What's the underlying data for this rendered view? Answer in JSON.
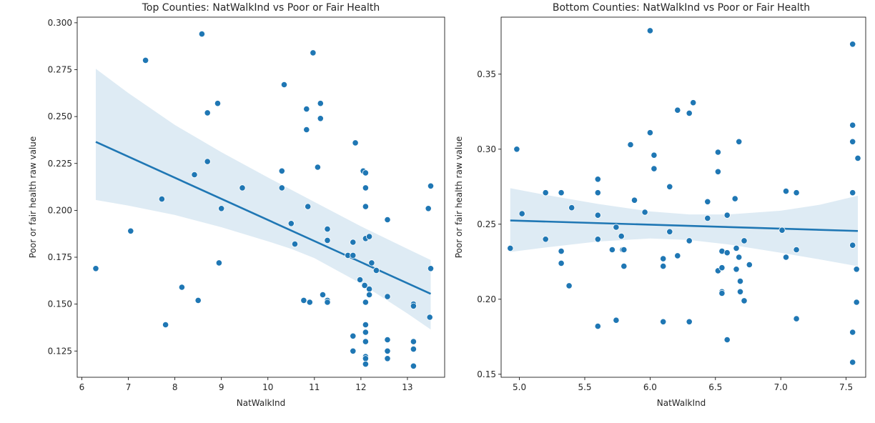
{
  "chart_data": [
    {
      "type": "scatter",
      "title": "Top Counties: NatWalkInd vs Poor or Fair Health",
      "xlabel": "NatWalkInd",
      "ylabel": "Poor or fair health raw value",
      "xlim": [
        5.9,
        13.8
      ],
      "ylim": [
        0.111,
        0.303
      ],
      "xticks": [
        6,
        7,
        8,
        9,
        10,
        11,
        12,
        13
      ],
      "yticks": [
        0.125,
        0.15,
        0.175,
        0.2,
        0.225,
        0.25,
        0.275,
        0.3
      ],
      "ytick_labels": [
        "0.125",
        "0.150",
        "0.175",
        "0.200",
        "0.225",
        "0.250",
        "0.275",
        "0.300"
      ],
      "grid": false,
      "point_color": "#1f77b4",
      "regression": {
        "x_start": 6.3,
        "y_start": 0.2365,
        "x_end": 13.5,
        "y_end": 0.1555,
        "ci_upper": [
          [
            6.3,
            0.2755
          ],
          [
            7.0,
            0.2625
          ],
          [
            8.0,
            0.2455
          ],
          [
            9.0,
            0.231
          ],
          [
            10.0,
            0.2175
          ],
          [
            10.5,
            0.211
          ],
          [
            11.0,
            0.2045
          ],
          [
            12.0,
            0.1915
          ],
          [
            13.0,
            0.1795
          ],
          [
            13.5,
            0.1735
          ]
        ],
        "ci_lower": [
          [
            6.3,
            0.2055
          ],
          [
            7.0,
            0.2025
          ],
          [
            8.0,
            0.1975
          ],
          [
            9.0,
            0.191
          ],
          [
            10.0,
            0.1835
          ],
          [
            10.5,
            0.1795
          ],
          [
            11.0,
            0.1745
          ],
          [
            12.0,
            0.161
          ],
          [
            13.0,
            0.145
          ],
          [
            13.5,
            0.1365
          ]
        ]
      },
      "points": [
        [
          6.3,
          0.169
        ],
        [
          7.05,
          0.189
        ],
        [
          7.37,
          0.28
        ],
        [
          7.72,
          0.206
        ],
        [
          7.8,
          0.139
        ],
        [
          8.15,
          0.159
        ],
        [
          8.42,
          0.219
        ],
        [
          8.5,
          0.152
        ],
        [
          8.58,
          0.294
        ],
        [
          8.7,
          0.252
        ],
        [
          8.7,
          0.226
        ],
        [
          8.92,
          0.257
        ],
        [
          8.95,
          0.172
        ],
        [
          9.0,
          0.201
        ],
        [
          9.45,
          0.212
        ],
        [
          10.3,
          0.221
        ],
        [
          10.3,
          0.212
        ],
        [
          10.35,
          0.267
        ],
        [
          10.5,
          0.193
        ],
        [
          10.58,
          0.182
        ],
        [
          10.77,
          0.152
        ],
        [
          10.83,
          0.254
        ],
        [
          10.83,
          0.243
        ],
        [
          10.86,
          0.202
        ],
        [
          10.9,
          0.151
        ],
        [
          10.97,
          0.284
        ],
        [
          11.07,
          0.223
        ],
        [
          11.13,
          0.257
        ],
        [
          11.13,
          0.249
        ],
        [
          11.18,
          0.155
        ],
        [
          11.28,
          0.19
        ],
        [
          11.28,
          0.184
        ],
        [
          11.28,
          0.152
        ],
        [
          11.28,
          0.151
        ],
        [
          11.72,
          0.176
        ],
        [
          11.83,
          0.183
        ],
        [
          11.83,
          0.176
        ],
        [
          11.83,
          0.133
        ],
        [
          11.83,
          0.125
        ],
        [
          11.88,
          0.236
        ],
        [
          11.98,
          0.163
        ],
        [
          12.05,
          0.221
        ],
        [
          12.08,
          0.16
        ],
        [
          12.1,
          0.22
        ],
        [
          12.1,
          0.212
        ],
        [
          12.1,
          0.202
        ],
        [
          12.1,
          0.185
        ],
        [
          12.1,
          0.151
        ],
        [
          12.1,
          0.139
        ],
        [
          12.1,
          0.135
        ],
        [
          12.1,
          0.13
        ],
        [
          12.1,
          0.122
        ],
        [
          12.1,
          0.121
        ],
        [
          12.1,
          0.118
        ],
        [
          12.18,
          0.186
        ],
        [
          12.18,
          0.158
        ],
        [
          12.18,
          0.155
        ],
        [
          12.23,
          0.172
        ],
        [
          12.33,
          0.168
        ],
        [
          12.57,
          0.195
        ],
        [
          12.57,
          0.154
        ],
        [
          12.57,
          0.131
        ],
        [
          12.57,
          0.125
        ],
        [
          12.57,
          0.121
        ],
        [
          13.13,
          0.15
        ],
        [
          13.13,
          0.149
        ],
        [
          13.13,
          0.13
        ],
        [
          13.13,
          0.126
        ],
        [
          13.13,
          0.117
        ],
        [
          13.45,
          0.201
        ],
        [
          13.48,
          0.143
        ],
        [
          13.5,
          0.213
        ],
        [
          13.5,
          0.169
        ]
      ]
    },
    {
      "type": "scatter",
      "title": "Bottom Counties: NatWalkInd vs Poor or Fair Health",
      "xlabel": "NatWalkInd",
      "ylabel": "Poor or fair health raw value",
      "xlim": [
        4.86,
        7.65
      ],
      "ylim": [
        0.148,
        0.388
      ],
      "xticks": [
        5.0,
        5.5,
        6.0,
        6.5,
        7.0,
        7.5
      ],
      "xtick_labels": [
        "5.0",
        "5.5",
        "6.0",
        "6.5",
        "7.0",
        "7.5"
      ],
      "yticks": [
        0.15,
        0.2,
        0.25,
        0.3,
        0.35
      ],
      "ytick_labels": [
        "0.15",
        "0.20",
        "0.25",
        "0.30",
        "0.35"
      ],
      "grid": false,
      "point_color": "#1f77b4",
      "regression": {
        "x_start": 4.93,
        "y_start": 0.2525,
        "x_end": 7.59,
        "y_end": 0.2455,
        "ci_upper": [
          [
            4.93,
            0.274
          ],
          [
            5.2,
            0.2695
          ],
          [
            5.6,
            0.2635
          ],
          [
            6.0,
            0.2585
          ],
          [
            6.3,
            0.2565
          ],
          [
            6.6,
            0.2565
          ],
          [
            7.0,
            0.259
          ],
          [
            7.3,
            0.263
          ],
          [
            7.59,
            0.269
          ]
        ],
        "ci_lower": [
          [
            4.93,
            0.2315
          ],
          [
            5.2,
            0.2345
          ],
          [
            5.6,
            0.2385
          ],
          [
            6.0,
            0.2405
          ],
          [
            6.3,
            0.2395
          ],
          [
            6.6,
            0.2365
          ],
          [
            7.0,
            0.231
          ],
          [
            7.3,
            0.2265
          ],
          [
            7.59,
            0.222
          ]
        ]
      },
      "points": [
        [
          4.93,
          0.234
        ],
        [
          4.98,
          0.3
        ],
        [
          5.02,
          0.257
        ],
        [
          5.2,
          0.271
        ],
        [
          5.2,
          0.24
        ],
        [
          5.32,
          0.271
        ],
        [
          5.32,
          0.232
        ],
        [
          5.32,
          0.224
        ],
        [
          5.38,
          0.209
        ],
        [
          5.4,
          0.261
        ],
        [
          5.6,
          0.28
        ],
        [
          5.6,
          0.271
        ],
        [
          5.6,
          0.256
        ],
        [
          5.6,
          0.24
        ],
        [
          5.6,
          0.182
        ],
        [
          5.71,
          0.233
        ],
        [
          5.74,
          0.248
        ],
        [
          5.74,
          0.186
        ],
        [
          5.78,
          0.242
        ],
        [
          5.79,
          0.233
        ],
        [
          5.8,
          0.233
        ],
        [
          5.8,
          0.222
        ],
        [
          5.85,
          0.303
        ],
        [
          5.88,
          0.266
        ],
        [
          5.96,
          0.258
        ],
        [
          6.0,
          0.379
        ],
        [
          6.0,
          0.311
        ],
        [
          6.03,
          0.296
        ],
        [
          6.03,
          0.287
        ],
        [
          6.1,
          0.227
        ],
        [
          6.1,
          0.222
        ],
        [
          6.1,
          0.185
        ],
        [
          6.15,
          0.275
        ],
        [
          6.15,
          0.245
        ],
        [
          6.21,
          0.326
        ],
        [
          6.21,
          0.229
        ],
        [
          6.3,
          0.324
        ],
        [
          6.3,
          0.239
        ],
        [
          6.3,
          0.185
        ],
        [
          6.33,
          0.331
        ],
        [
          6.44,
          0.265
        ],
        [
          6.44,
          0.254
        ],
        [
          6.52,
          0.298
        ],
        [
          6.52,
          0.285
        ],
        [
          6.52,
          0.219
        ],
        [
          6.55,
          0.232
        ],
        [
          6.55,
          0.221
        ],
        [
          6.55,
          0.205
        ],
        [
          6.55,
          0.204
        ],
        [
          6.59,
          0.256
        ],
        [
          6.59,
          0.231
        ],
        [
          6.59,
          0.173
        ],
        [
          6.65,
          0.267
        ],
        [
          6.66,
          0.234
        ],
        [
          6.66,
          0.22
        ],
        [
          6.68,
          0.305
        ],
        [
          6.68,
          0.228
        ],
        [
          6.69,
          0.212
        ],
        [
          6.69,
          0.205
        ],
        [
          6.72,
          0.239
        ],
        [
          6.72,
          0.199
        ],
        [
          6.76,
          0.223
        ],
        [
          7.01,
          0.246
        ],
        [
          7.04,
          0.272
        ],
        [
          7.04,
          0.228
        ],
        [
          7.12,
          0.271
        ],
        [
          7.12,
          0.233
        ],
        [
          7.12,
          0.187
        ],
        [
          7.55,
          0.37
        ],
        [
          7.55,
          0.316
        ],
        [
          7.55,
          0.305
        ],
        [
          7.55,
          0.271
        ],
        [
          7.55,
          0.236
        ],
        [
          7.55,
          0.178
        ],
        [
          7.55,
          0.158
        ],
        [
          7.58,
          0.22
        ],
        [
          7.58,
          0.198
        ],
        [
          7.59,
          0.294
        ]
      ]
    }
  ]
}
